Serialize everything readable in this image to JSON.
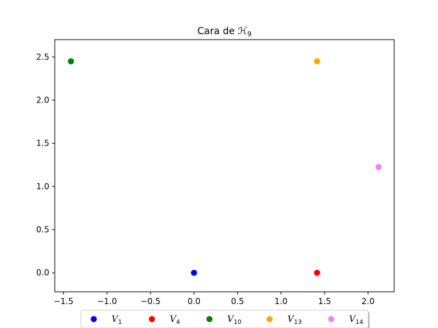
{
  "chart_data": {
    "type": "scatter",
    "title": "Cara de ℋ",
    "title_sub": "9",
    "xlabel": "",
    "ylabel": "",
    "xlim": [
      -1.6,
      2.3
    ],
    "ylim": [
      -0.22,
      2.7
    ],
    "xticks": [
      -1.5,
      -1.0,
      -0.5,
      0.0,
      0.5,
      1.0,
      1.5,
      2.0
    ],
    "xtick_labels": [
      "−1.5",
      "−1.0",
      "−0.5",
      "0.0",
      "0.5",
      "1.0",
      "1.5",
      "2.0"
    ],
    "yticks": [
      0.0,
      0.5,
      1.0,
      1.5,
      2.0,
      2.5
    ],
    "ytick_labels": [
      "0.0",
      "0.5",
      "1.0",
      "1.5",
      "2.0",
      "2.5"
    ],
    "grid": false,
    "legend_placement": "bottom-center outside, horizontal",
    "series": [
      {
        "name": "V",
        "sub": "1",
        "color": "#0000ff",
        "x": [
          0.0
        ],
        "y": [
          0.0
        ]
      },
      {
        "name": "V",
        "sub": "4",
        "color": "#ff0000",
        "x": [
          1.414
        ],
        "y": [
          0.0
        ]
      },
      {
        "name": "V",
        "sub": "10",
        "color": "#008000",
        "x": [
          -1.414
        ],
        "y": [
          2.449
        ]
      },
      {
        "name": "V",
        "sub": "13",
        "color": "#ffa500",
        "x": [
          1.414
        ],
        "y": [
          2.449
        ]
      },
      {
        "name": "V",
        "sub": "14",
        "color": "#ee82ee",
        "x": [
          2.121
        ],
        "y": [
          1.225
        ]
      }
    ]
  }
}
